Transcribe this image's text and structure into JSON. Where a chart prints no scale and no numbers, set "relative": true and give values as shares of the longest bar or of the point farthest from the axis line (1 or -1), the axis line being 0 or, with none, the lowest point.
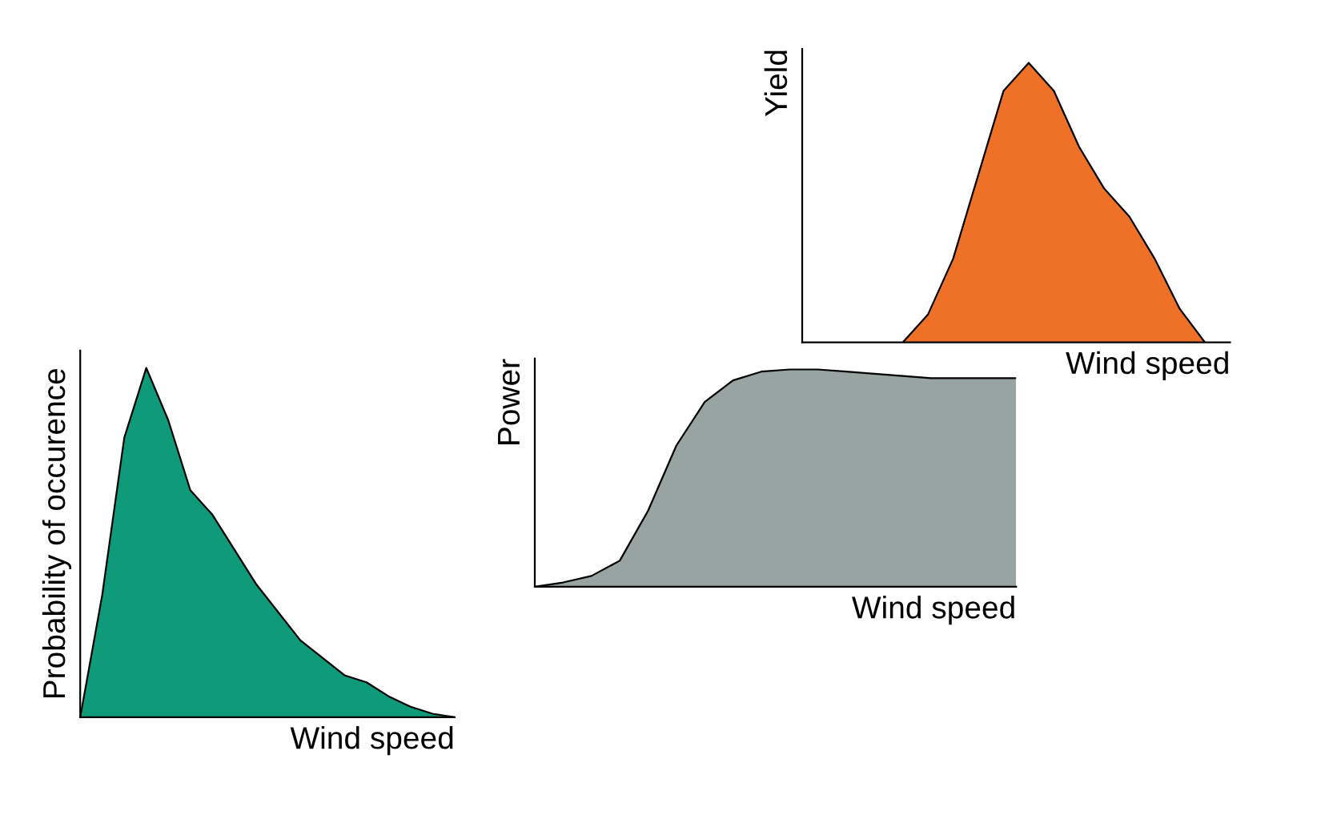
{
  "chart_data": [
    {
      "type": "area",
      "relative": true,
      "xlabel": "Wind speed",
      "ylabel": "Probability of occurence",
      "tick_labels": false,
      "categories": [
        null,
        null,
        null,
        null,
        null,
        null,
        null,
        null,
        null,
        null,
        null,
        null,
        null,
        null,
        null,
        null,
        null,
        null
      ],
      "series": [
        {
          "color": "#0f9a7a",
          "values": [
            0,
            0.35,
            0.8,
            1.0,
            0.85,
            0.65,
            0.58,
            0.48,
            0.38,
            0.3,
            0.22,
            0.17,
            0.12,
            0.1,
            0.06,
            0.03,
            0.01,
            0
          ]
        }
      ]
    },
    {
      "type": "area",
      "relative": true,
      "xlabel": "Wind speed",
      "ylabel": "Power",
      "tick_labels": false,
      "categories": [
        null,
        null,
        null,
        null,
        null,
        null,
        null,
        null,
        null,
        null,
        null,
        null,
        null,
        null,
        null,
        null,
        null,
        null
      ],
      "series": [
        {
          "color": "#98a4a2",
          "values": [
            0,
            0.02,
            0.05,
            0.12,
            0.35,
            0.65,
            0.85,
            0.95,
            0.99,
            1,
            1,
            0.99,
            0.98,
            0.97,
            0.96,
            0.96,
            0.96,
            0.96
          ]
        }
      ]
    },
    {
      "type": "area",
      "relative": true,
      "xlabel": "Wind speed",
      "ylabel": "Yield",
      "tick_labels": false,
      "categories": [
        null,
        null,
        null,
        null,
        null,
        null,
        null,
        null,
        null,
        null,
        null,
        null,
        null,
        null,
        null,
        null,
        null,
        null
      ],
      "series": [
        {
          "color": "#ee7127",
          "values": [
            null,
            null,
            null,
            null,
            0,
            0.1,
            0.3,
            0.6,
            0.9,
            1.0,
            0.9,
            0.7,
            0.55,
            0.45,
            0.3,
            0.12,
            0,
            null
          ]
        }
      ]
    }
  ]
}
